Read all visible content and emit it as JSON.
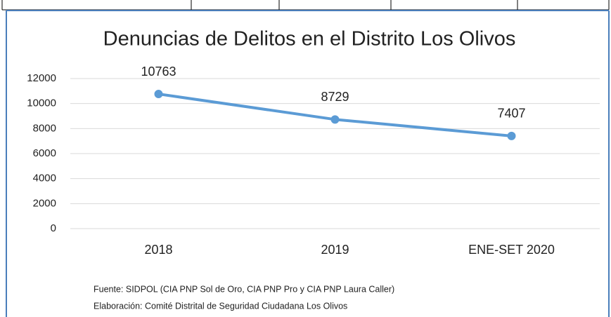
{
  "chart_data": {
    "type": "line",
    "title": "Denuncias de Delitos en el Distrito Los Olivos",
    "categories": [
      "2018",
      "2019",
      "ENE-SET 2020"
    ],
    "values": [
      10763,
      8729,
      7407
    ],
    "color": "#5b9bd5",
    "ylim": [
      0,
      12000
    ],
    "yticks": [
      0,
      2000,
      4000,
      6000,
      8000,
      10000,
      12000
    ],
    "grid": true,
    "notes": [
      "Fuente: SIDPOL (CIA PNP Sol de Oro, CIA PNP Pro y CIA PNP Laura Caller)",
      "Elaboración: Comité Distrital de Seguridad Ciudadana Los Olivos"
    ]
  }
}
